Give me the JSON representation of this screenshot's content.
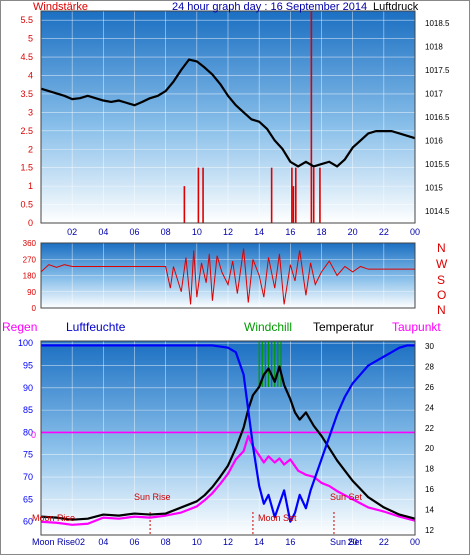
{
  "colors": {
    "wind": "#dd0000",
    "pressure": "#000000",
    "title": "#0000aa",
    "humidity": "#0000ff",
    "temperature": "#000000",
    "windchill": "#009900",
    "dewpoint": "#ff00ff",
    "rain": "#ff00ff",
    "astro": "#cc0000",
    "moon": "#0000aa",
    "grid": "#ffffff"
  },
  "chart_data": [
    {
      "type": "line",
      "title": "24 hour graph day : 16 September 2014",
      "left_label": "Windstärke",
      "right_label": "Luftdruck",
      "x_ticks": [
        "02",
        "04",
        "06",
        "08",
        "10",
        "12",
        "14",
        "16",
        "18",
        "20",
        "22",
        "00"
      ],
      "y_ticks_left": [
        "0",
        "0.5",
        "1",
        "1.5",
        "2",
        "2.5",
        "3",
        "3.5",
        "4",
        "4.5",
        "5",
        "5.5"
      ],
      "y_ticks_right": [
        "1014.5",
        "1015",
        "1015.5",
        "1016",
        "1016.5",
        "1017",
        "1017.5",
        "1018",
        "1018.5"
      ],
      "ylim_left": [
        0,
        5.75
      ],
      "ylim_right": [
        1014.25,
        1018.75
      ],
      "xlim": [
        0,
        24
      ],
      "series": [
        {
          "axis": "right",
          "x": [
            0,
            0.5,
            1,
            1.5,
            2,
            2.5,
            3,
            3.5,
            4,
            4.5,
            5,
            5.5,
            6,
            6.5,
            7,
            7.5,
            8,
            8.5,
            9,
            9.5,
            10,
            10.5,
            11,
            11.5,
            12,
            12.5,
            13,
            13.5,
            14,
            14.5,
            15,
            15.5,
            16,
            16.5,
            17,
            17.5,
            18,
            18.5,
            19,
            19.5,
            20,
            20.5,
            21,
            21.5,
            22,
            22.5,
            23,
            23.5,
            24
          ],
          "values": [
            1017.1,
            1017.05,
            1017.0,
            1016.95,
            1016.88,
            1016.9,
            1016.95,
            1016.9,
            1016.85,
            1016.82,
            1016.85,
            1016.8,
            1016.75,
            1016.82,
            1016.9,
            1016.95,
            1017.05,
            1017.25,
            1017.5,
            1017.72,
            1017.68,
            1017.55,
            1017.4,
            1017.2,
            1016.95,
            1016.75,
            1016.6,
            1016.45,
            1016.4,
            1016.25,
            1016.0,
            1015.82,
            1015.55,
            1015.45,
            1015.55,
            1015.45,
            1015.5,
            1015.55,
            1015.45,
            1015.6,
            1015.85,
            1016.0,
            1016.15,
            1016.2,
            1016.2,
            1016.2,
            1016.15,
            1016.1,
            1016.05
          ]
        },
        {
          "axis": "left",
          "type": "bar",
          "x": [
            9.2,
            10.1,
            10.4,
            14.8,
            16.1,
            16.2,
            16.35,
            17.35,
            17.5,
            17.9
          ],
          "values": [
            1.0,
            1.5,
            1.5,
            1.5,
            1.5,
            1.0,
            1.5,
            5.75,
            1.5,
            1.5
          ]
        }
      ]
    },
    {
      "type": "line",
      "series_name": "wind direction",
      "y_ticks": [
        "0",
        "90",
        "180",
        "270",
        "360"
      ],
      "ylim": [
        0,
        360
      ],
      "xlim": [
        0,
        24
      ],
      "compass_labels": [
        "N",
        "W",
        "S",
        "O",
        "N"
      ],
      "x": [
        0,
        0.5,
        1,
        1.5,
        2,
        3,
        4,
        5,
        6,
        7,
        8,
        8.3,
        8.5,
        9,
        9.3,
        9.6,
        9.8,
        10,
        10.3,
        10.6,
        10.8,
        11,
        11.3,
        11.6,
        12,
        12.3,
        12.6,
        13,
        13.3,
        13.6,
        14,
        14.3,
        14.6,
        15,
        15.3,
        15.6,
        16,
        16.3,
        16.6,
        17,
        17.3,
        17.6,
        18,
        18.5,
        19,
        19.5,
        20,
        20.5,
        21,
        22,
        23,
        24
      ],
      "values": [
        200,
        240,
        225,
        240,
        230,
        230,
        230,
        230,
        230,
        230,
        230,
        110,
        230,
        90,
        280,
        20,
        320,
        60,
        250,
        140,
        300,
        40,
        290,
        200,
        130,
        260,
        80,
        330,
        30,
        270,
        180,
        60,
        280,
        110,
        300,
        20,
        240,
        150,
        320,
        70,
        250,
        130,
        200,
        260,
        180,
        230,
        200,
        230,
        215,
        215,
        215,
        215
      ]
    },
    {
      "type": "line",
      "left_label": "Regen",
      "humidity_label": "Luftfeuchte",
      "windchill_label": "Windchill",
      "temperature_label": "Temperatur",
      "dewpoint_label": "Taupunkt",
      "y_ticks_left": [
        "60",
        "65",
        "70",
        "75",
        "80",
        "85",
        "90",
        "95",
        "100"
      ],
      "y_ticks_right": [
        "12",
        "14",
        "16",
        "18",
        "20",
        "22",
        "24",
        "26",
        "28",
        "30"
      ],
      "rain_tick": "0",
      "ylim_left": [
        57,
        100.5
      ],
      "ylim_right": [
        11.5,
        30.5
      ],
      "xlim": [
        0,
        24
      ],
      "x_ticks": [
        "02",
        "04",
        "06",
        "08",
        "10",
        "12",
        "14",
        "16",
        "18",
        "20",
        "22",
        "00"
      ],
      "series": [
        {
          "name": "Luftfeuchte",
          "x": [
            0,
            2,
            4,
            6,
            8,
            10,
            11,
            12,
            12.5,
            13,
            13.3,
            13.6,
            14,
            14.3,
            14.6,
            15,
            15.3,
            15.6,
            16,
            16.3,
            16.6,
            17,
            17.3,
            17.6,
            18,
            18.5,
            19,
            19.5,
            20,
            20.5,
            21,
            21.5,
            22,
            22.5,
            23,
            23.5,
            24
          ],
          "values": [
            99.5,
            99.5,
            99.5,
            99.5,
            99.5,
            99.5,
            99.5,
            99,
            98,
            93,
            85,
            77,
            68,
            64,
            66,
            61,
            64,
            67,
            60,
            62,
            66,
            63,
            67,
            70,
            74,
            79,
            84,
            88,
            91,
            93,
            95,
            96,
            97,
            98,
            99,
            99.5,
            99.5
          ]
        },
        {
          "name": "Temperatur",
          "x": [
            0,
            1,
            2,
            3,
            4,
            5,
            6,
            7,
            8,
            9,
            10,
            10.5,
            11,
            11.5,
            12,
            12.5,
            13,
            13.3,
            13.6,
            14,
            14.3,
            14.6,
            15,
            15.3,
            15.6,
            16,
            16.3,
            16.6,
            17,
            17.5,
            18,
            18.5,
            19,
            19.5,
            20,
            20.5,
            21,
            22,
            23,
            24
          ],
          "values": [
            13.3,
            13.2,
            13,
            13.1,
            13.5,
            13.4,
            13.6,
            13.5,
            13.6,
            14.2,
            14.8,
            15.4,
            16.2,
            17.2,
            18.3,
            20,
            22,
            23.8,
            25.2,
            26,
            27.2,
            27.8,
            26.5,
            28,
            26.2,
            24.8,
            23.5,
            22.8,
            23.5,
            22.2,
            21.2,
            20,
            18.8,
            17.8,
            16.8,
            16,
            15.2,
            14.2,
            13.5,
            13.1
          ]
        },
        {
          "name": "Taupunkt",
          "x": [
            0,
            1,
            2,
            3,
            4,
            5,
            6,
            7,
            8,
            9,
            10,
            10.5,
            11,
            11.5,
            12,
            12.5,
            13,
            13.3,
            13.6,
            14,
            14.3,
            14.6,
            15,
            15.3,
            15.6,
            16,
            16.5,
            17,
            17.5,
            18,
            18.5,
            19,
            19.5,
            20,
            20.5,
            21,
            22,
            23,
            24
          ],
          "values": [
            12.8,
            12.7,
            12.5,
            12.6,
            13.2,
            13.1,
            13.3,
            13.2,
            13.4,
            13.7,
            14.3,
            14.9,
            15.6,
            16.5,
            17.5,
            18.9,
            19.7,
            21.2,
            20.2,
            19.3,
            18.6,
            19.2,
            18.6,
            19,
            18.4,
            18.9,
            17.8,
            17.4,
            17.2,
            16.6,
            16.3,
            15.8,
            15.4,
            15,
            14.6,
            14.2,
            13.8,
            13.3,
            12.9
          ]
        },
        {
          "name": "Windchill",
          "x": [
            14.0,
            14.2,
            14.4,
            14.6,
            14.8,
            15.0,
            15.2,
            15.4
          ],
          "values": [
            30,
            30,
            30,
            30,
            30,
            30,
            30,
            30
          ]
        }
      ],
      "astro_labels": {
        "moon_rise": "Moon Rise",
        "sun_rise": "Sun Rise",
        "moon_set": "Moon Set",
        "sun_set": "Sun Set",
        "bottom_moon_rise": "Moon Rise02",
        "bottom_sun_set": "Sun Set"
      }
    }
  ]
}
